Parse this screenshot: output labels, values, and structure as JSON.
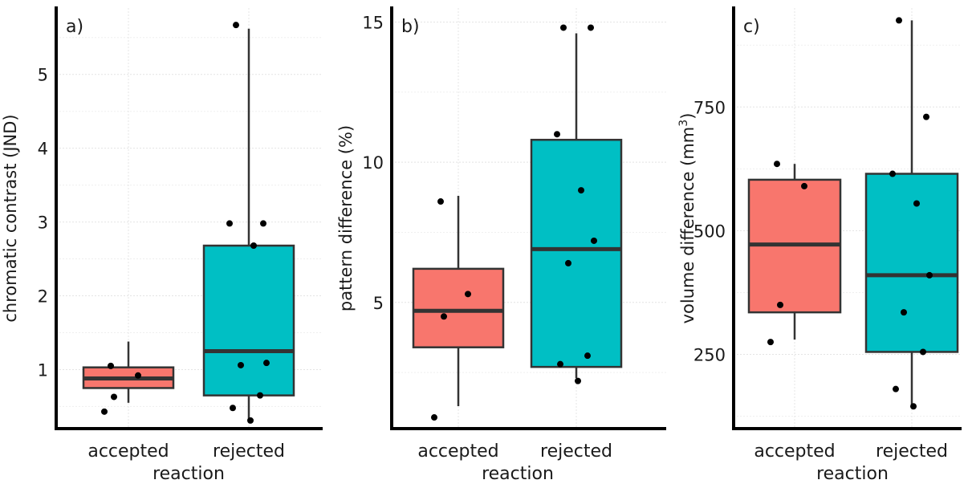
{
  "chart_data": [
    {
      "type": "box",
      "panel_label": "a)",
      "xlabel": "reaction",
      "ylabel": "chromatic contrast (JND)",
      "categories": [
        "accepted",
        "rejected"
      ],
      "ylim": [
        0.2,
        5.9
      ],
      "y_ticks": [
        1,
        2,
        3,
        4,
        5
      ],
      "y_tick_labels": [
        "1",
        "2",
        "3",
        "4",
        "5"
      ],
      "grid": true,
      "colors": [
        "#f8766d",
        "#00bfc4"
      ],
      "boxes": [
        {
          "category": "accepted",
          "whisker_low": 0.55,
          "q1": 0.75,
          "median": 0.88,
          "q3": 1.03,
          "whisker_high": 1.38
        },
        {
          "category": "rejected",
          "whisker_low": 0.33,
          "q1": 0.65,
          "median": 1.25,
          "q3": 2.68,
          "whisker_high": 5.62
        }
      ],
      "points": [
        {
          "category": "accepted",
          "values": [
            1.05,
            0.92,
            0.63,
            0.43
          ]
        },
        {
          "category": "rejected",
          "values": [
            5.67,
            2.98,
            2.98,
            2.68,
            1.09,
            1.06,
            0.65,
            0.48,
            0.31
          ]
        }
      ]
    },
    {
      "type": "box",
      "panel_label": "b)",
      "xlabel": "reaction",
      "ylabel": "pattern difference (%)",
      "categories": [
        "accepted",
        "rejected"
      ],
      "ylim": [
        0.5,
        15.5
      ],
      "y_ticks": [
        5,
        10,
        15
      ],
      "y_tick_labels": [
        "5",
        "10",
        "15"
      ],
      "grid": true,
      "colors": [
        "#f8766d",
        "#00bfc4"
      ],
      "boxes": [
        {
          "category": "accepted",
          "whisker_low": 1.3,
          "q1": 3.4,
          "median": 4.7,
          "q3": 6.2,
          "whisker_high": 8.8
        },
        {
          "category": "rejected",
          "whisker_low": 2.3,
          "q1": 2.7,
          "median": 6.9,
          "q3": 10.8,
          "whisker_high": 14.6
        }
      ],
      "points": [
        {
          "category": "accepted",
          "values": [
            8.6,
            5.3,
            4.5,
            0.9
          ]
        },
        {
          "category": "rejected",
          "values": [
            14.8,
            14.8,
            11.0,
            9.0,
            7.2,
            6.4,
            3.1,
            2.8,
            2.2
          ]
        }
      ]
    },
    {
      "type": "box",
      "panel_label": "c)",
      "xlabel": "reaction",
      "ylabel": "volume difference (mm",
      "ylabel_superscript": "3",
      "ylabel_close": ")",
      "categories": [
        "accepted",
        "rejected"
      ],
      "ylim": [
        100,
        950
      ],
      "y_ticks": [
        250,
        500,
        750
      ],
      "y_tick_labels": [
        "250",
        "500",
        "750"
      ],
      "grid": true,
      "colors": [
        "#f8766d",
        "#00bfc4"
      ],
      "boxes": [
        {
          "category": "accepted",
          "whisker_low": 280,
          "q1": 335,
          "median": 472,
          "q3": 603,
          "whisker_high": 635
        },
        {
          "category": "rejected",
          "whisker_low": 145,
          "q1": 255,
          "median": 410,
          "q3": 615,
          "whisker_high": 925
        }
      ],
      "points": [
        {
          "category": "accepted",
          "values": [
            635,
            590,
            350,
            275
          ]
        },
        {
          "category": "rejected",
          "values": [
            925,
            730,
            615,
            555,
            410,
            335,
            255,
            180,
            145
          ]
        }
      ]
    }
  ]
}
